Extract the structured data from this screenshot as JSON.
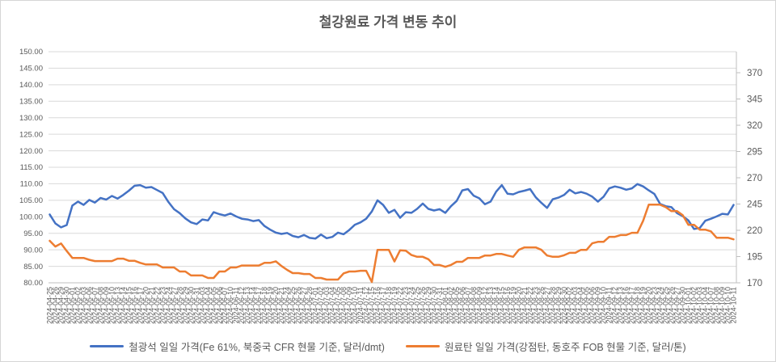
{
  "chart": {
    "title": "철강원료 가격 변동 추이",
    "legend": [
      {
        "label": "철광석 일일 가격(Fe 61%, 북중국 CFR 현물 기준, 달러/dmt)",
        "color": "#4472C4"
      },
      {
        "label": "원료탄 일일 가격(강점탄, 동호주 FOB 현물 기준, 달러/톤)",
        "color": "#ED7D31"
      }
    ]
  },
  "colors": {
    "iron_ore_line": "#4472C4",
    "coking_coal_line": "#ED7D31",
    "gridline": "#D9D9D9",
    "axis_line": "#BFBFBF",
    "tick_label": "#595959",
    "title_text": "#595959"
  },
  "chart_data": {
    "type": "line",
    "title": "철강원료 가격 변동 추이",
    "grid": true,
    "legend_position": "bottom",
    "axes": {
      "left": {
        "min": 80,
        "max": 150,
        "step": 5,
        "ticks": [
          "150.00",
          "145.00",
          "140.00",
          "135.00",
          "130.00",
          "125.00",
          "120.00",
          "115.00",
          "110.00",
          "105.00",
          "100.00",
          "95.00",
          "90.00",
          "85.00",
          "80.00"
        ]
      },
      "right": {
        "min": 170,
        "max": 390,
        "step": 25,
        "ticks": [
          "370",
          "345",
          "320",
          "295",
          "270",
          "245",
          "220",
          "195",
          "170"
        ]
      }
    },
    "x": [
      "2024-04-25",
      "2024-04-26",
      "2024-04-29",
      "2024-04-30",
      "2024-05-01",
      "2024-05-02",
      "2024-05-03",
      "2024-05-06",
      "2024-05-07",
      "2024-05-08",
      "2024-05-09",
      "2024-05-10",
      "2024-05-13",
      "2024-05-14",
      "2024-05-15",
      "2024-05-16",
      "2024-05-17",
      "2024-05-20",
      "2024-05-21",
      "2024-05-22",
      "2024-05-23",
      "2024-05-24",
      "2024-05-27",
      "2024-05-28",
      "2024-05-29",
      "2024-05-30",
      "2024-05-31",
      "2024-06-03",
      "2024-06-04",
      "2024-06-05",
      "2024-06-06",
      "2024-06-07",
      "2024-06-10",
      "2024-06-11",
      "2024-06-12",
      "2024-06-13",
      "2024-06-14",
      "2024-06-17",
      "2024-06-18",
      "2024-06-19",
      "2024-06-20",
      "2024-06-21",
      "2024-06-24",
      "2024-06-25",
      "2024-06-26",
      "2024-06-27",
      "2024-06-28",
      "2024-07-01",
      "2024-07-02",
      "2024-07-03",
      "2024-07-04",
      "2024-07-05",
      "2024-07-08",
      "2024-07-09",
      "2024-07-10",
      "2024-07-11",
      "2024-07-12",
      "2024-07-15",
      "2024-07-16",
      "2024-07-17",
      "2024-07-18",
      "2024-07-19",
      "2024-07-22",
      "2024-07-23",
      "2024-07-24",
      "2024-07-25",
      "2024-07-26",
      "2024-07-29",
      "2024-07-30",
      "2024-07-31",
      "2024-08-01",
      "2024-08-02",
      "2024-08-05",
      "2024-08-06",
      "2024-08-07",
      "2024-08-08",
      "2024-08-09",
      "2024-08-12",
      "2024-08-13",
      "2024-08-14",
      "2024-08-15",
      "2024-08-16",
      "2024-08-19",
      "2024-08-20",
      "2024-08-21",
      "2024-08-22",
      "2024-08-23",
      "2024-08-26",
      "2024-08-27",
      "2024-08-28",
      "2024-08-29",
      "2024-08-30",
      "2024-09-02",
      "2024-09-03",
      "2024-09-04",
      "2024-09-05",
      "2024-09-06",
      "2024-09-09",
      "2024-09-10",
      "2024-09-11",
      "2024-09-12",
      "2024-09-13",
      "2024-09-16",
      "2024-09-17",
      "2024-09-18",
      "2024-09-19",
      "2024-09-20",
      "2024-09-23",
      "2024-09-24",
      "2024-09-25",
      "2024-09-26",
      "2024-09-27",
      "2024-09-30",
      "2024-10-01",
      "2024-10-02",
      "2024-10-03",
      "2024-10-04",
      "2024-10-07",
      "2024-10-08",
      "2024-10-09",
      "2024-10-10",
      "2024-10-11"
    ],
    "series": [
      {
        "name": "철광석 일일 가격(Fe 61%, 북중국 CFR 현물 기준, 달러/dmt)",
        "axis": "left",
        "color": "#4472C4",
        "values": [
          100.7,
          98.0,
          96.8,
          97.5,
          103.4,
          104.6,
          103.6,
          105.1,
          104.3,
          105.7,
          105.2,
          106.3,
          105.5,
          106.6,
          107.9,
          109.4,
          109.6,
          108.8,
          109.0,
          108.1,
          107.2,
          104.5,
          102.3,
          101.1,
          99.5,
          98.3,
          97.8,
          99.2,
          98.9,
          101.4,
          100.8,
          100.4,
          101.0,
          100.1,
          99.4,
          99.2,
          98.7,
          99.0,
          97.2,
          96.1,
          95.2,
          94.8,
          95.1,
          94.2,
          93.8,
          94.5,
          93.6,
          93.4,
          94.6,
          93.5,
          93.9,
          95.2,
          94.7,
          96.0,
          97.6,
          98.3,
          99.4,
          101.6,
          105.0,
          103.6,
          101.2,
          102.1,
          99.7,
          101.4,
          101.2,
          102.4,
          104.0,
          102.4,
          101.9,
          102.3,
          101.2,
          103.2,
          104.8,
          108.0,
          108.4,
          106.4,
          105.6,
          103.8,
          104.6,
          107.6,
          109.6,
          107.0,
          106.8,
          107.5,
          107.9,
          108.4,
          105.9,
          104.2,
          102.7,
          105.3,
          105.8,
          106.6,
          108.2,
          107.1,
          107.5,
          107.0,
          106.1,
          104.6,
          106.1,
          108.6,
          109.2,
          108.8,
          108.2,
          108.6,
          109.9,
          109.2,
          108.0,
          106.9,
          103.9,
          103.2,
          102.9,
          101.1,
          100.2,
          98.9,
          96.3,
          96.6,
          98.8,
          99.4,
          100.1,
          100.9,
          100.7,
          103.6
        ]
      },
      {
        "name": "원료탄 일일 가격(강점탄, 동호주 FOB 현물 기준, 달러/톤)",
        "axis": "right",
        "color": "#ED7D31",
        "values": [
          210.0,
          204.5,
          207.5,
          200.3,
          193.7,
          193.7,
          193.7,
          191.9,
          190.7,
          190.7,
          190.7,
          190.7,
          193.0,
          193.0,
          191.0,
          191.0,
          189.0,
          187.5,
          187.5,
          187.5,
          184.6,
          184.6,
          184.6,
          180.8,
          180.8,
          177.0,
          177.0,
          177.0,
          174.6,
          174.6,
          180.8,
          180.8,
          184.6,
          184.6,
          186.5,
          186.5,
          186.5,
          186.5,
          189.0,
          189.0,
          190.5,
          186.0,
          182.3,
          179.2,
          179.2,
          178.4,
          178.4,
          174.6,
          174.6,
          173.1,
          173.1,
          173.1,
          179.0,
          180.8,
          180.8,
          181.5,
          181.5,
          170.8,
          201.4,
          201.4,
          201.4,
          190.3,
          201.0,
          200.6,
          196.5,
          194.8,
          194.8,
          192.5,
          187.0,
          187.0,
          185.2,
          187.0,
          190.0,
          190.0,
          193.7,
          193.7,
          193.7,
          196.0,
          196.0,
          197.5,
          197.5,
          196.0,
          194.8,
          201.4,
          203.7,
          203.7,
          203.7,
          201.4,
          196.0,
          194.8,
          194.8,
          196.2,
          198.5,
          198.5,
          201.4,
          201.4,
          207.6,
          209.0,
          209.0,
          213.8,
          213.8,
          215.5,
          215.5,
          217.6,
          217.6,
          229.0,
          244.4,
          244.4,
          244.4,
          242.0,
          238.2,
          238.2,
          234.4,
          225.2,
          225.2,
          220.6,
          220.6,
          219.0,
          212.9,
          212.9,
          212.9,
          211.4
        ]
      }
    ]
  }
}
